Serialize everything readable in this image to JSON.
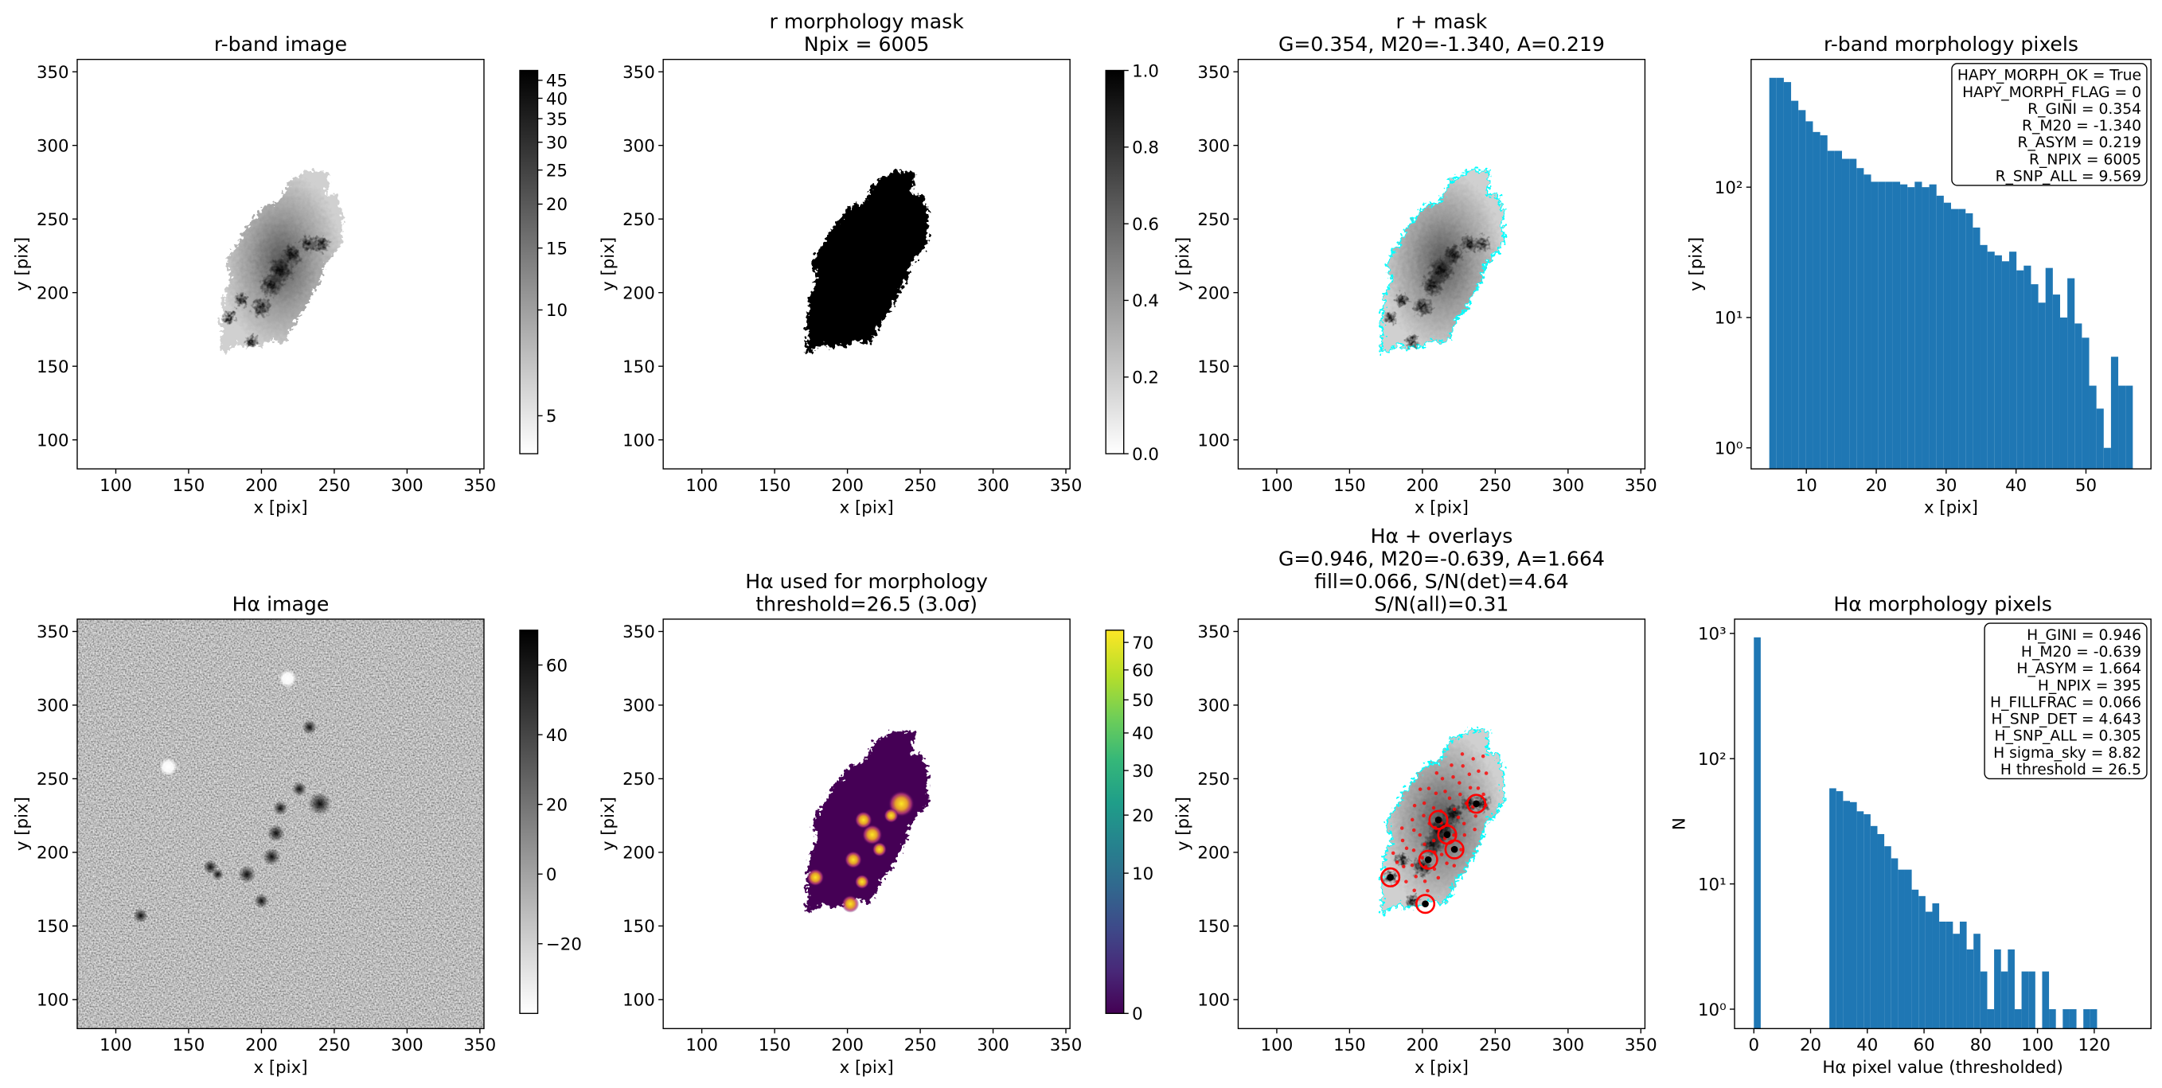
{
  "chart_data": [
    {
      "type": "image",
      "title": [
        "r-band image"
      ],
      "xlabel": "x [pix]",
      "ylabel": "y [pix]",
      "xlim": [
        73.5,
        352.8
      ],
      "ylim": [
        80.3,
        358.4
      ],
      "xticks": [
        100,
        150,
        200,
        250,
        300,
        350
      ],
      "yticks": [
        100,
        150,
        200,
        250,
        300,
        350
      ],
      "cmap": "gray_r",
      "cscale": "log",
      "clim": [
        3.9,
        48
      ],
      "cticks": [
        5,
        10,
        15,
        20,
        25,
        30,
        35,
        40,
        45
      ]
    },
    {
      "type": "image",
      "title": [
        "r morphology mask",
        "Npix = 6005"
      ],
      "xlabel": "x [pix]",
      "ylabel": "y [pix]",
      "xlim": [
        73.5,
        352.8
      ],
      "ylim": [
        80.3,
        358.4
      ],
      "xticks": [
        100,
        150,
        200,
        250,
        300,
        350
      ],
      "yticks": [
        100,
        150,
        200,
        250,
        300,
        350
      ],
      "cmap": "gray_r",
      "cscale": "linear",
      "clim": [
        0,
        1
      ],
      "cticks": [
        {
          "value": 0,
          "label": "0.0"
        },
        0.2,
        0.4,
        0.6,
        0.8,
        {
          "value": 1,
          "label": "1.0"
        }
      ]
    },
    {
      "type": "image",
      "title": [
        "r + mask",
        "G=0.354, M20=-1.340, A=0.219"
      ],
      "xlabel": "x [pix]",
      "ylabel": "y [pix]",
      "xlim": [
        73.5,
        352.8
      ],
      "ylim": [
        80.3,
        358.4
      ],
      "xticks": [
        100,
        150,
        200,
        250,
        300,
        350
      ],
      "yticks": [
        100,
        150,
        200,
        250,
        300,
        350
      ],
      "contour_color": "#00ffff"
    },
    {
      "type": "histogram",
      "title": [
        "r-band morphology pixels"
      ],
      "xlabel": "x [pix]",
      "ylabel": "y [pix]",
      "color": "#1f77b4",
      "bins": [
        4.7,
        5.74,
        6.78,
        7.82,
        8.86,
        9.9,
        10.94,
        11.98,
        13.02,
        14.06,
        15.1,
        16.14,
        17.18,
        18.22,
        19.26,
        20.3,
        21.34,
        22.38,
        23.42,
        24.46,
        25.5,
        26.54,
        27.58,
        28.62,
        29.66,
        30.7,
        31.74,
        32.78,
        33.82,
        34.86,
        35.9,
        36.94,
        37.98,
        39.02,
        40.06,
        41.1,
        42.14,
        43.18,
        44.22,
        45.26,
        46.3,
        47.34,
        48.38,
        49.42,
        50.46,
        51.5,
        52.54,
        53.58,
        54.62,
        55.66,
        56.7
      ],
      "counts": [
        690,
        690,
        640,
        460,
        390,
        320,
        265,
        250,
        190,
        190,
        165,
        165,
        140,
        125,
        110,
        110,
        110,
        110,
        105,
        100,
        110,
        100,
        105,
        86,
        76,
        68,
        68,
        63,
        49,
        36,
        32,
        30,
        27,
        32,
        23,
        25,
        18,
        13,
        24,
        15,
        10,
        20,
        9,
        7,
        3,
        2,
        1,
        5,
        3,
        3
      ],
      "xlim": [
        2.1,
        59.3
      ],
      "xticks": [
        10,
        20,
        30,
        40,
        50
      ],
      "yscale": "log",
      "ylim": [
        0.69,
        955
      ],
      "yticks": [
        {
          "value": 1,
          "label": "10⁰"
        },
        {
          "value": 10,
          "label": "10¹"
        },
        {
          "value": 100,
          "label": "10²"
        }
      ],
      "annotation": [
        "HAPY_MORPH_OK = True",
        "HAPY_MORPH_FLAG = 0",
        "R_GINI = 0.354",
        "R_M20 = -1.340",
        "R_ASYM = 0.219",
        "R_NPIX = 6005",
        "R_SNP_ALL = 9.569"
      ]
    },
    {
      "type": "image",
      "title": [
        "Hα image"
      ],
      "xlabel": "x [pix]",
      "ylabel": "y [pix]",
      "xlim": [
        73.5,
        352.8
      ],
      "ylim": [
        80.3,
        358.4
      ],
      "xticks": [
        100,
        150,
        200,
        250,
        300,
        350
      ],
      "yticks": [
        100,
        150,
        200,
        250,
        300,
        350
      ],
      "cmap": "gray_r",
      "cscale": "linear",
      "clim": [
        -40,
        70
      ],
      "cticks": [
        {
          "value": -20,
          "label": "−20"
        },
        0,
        20,
        40,
        60
      ]
    },
    {
      "type": "image",
      "title": [
        "Hα used for morphology",
        "threshold=26.5 (3.0σ)"
      ],
      "xlabel": "x [pix]",
      "ylabel": "y [pix]",
      "xlim": [
        73.5,
        352.8
      ],
      "ylim": [
        80.3,
        358.4
      ],
      "xticks": [
        100,
        150,
        200,
        250,
        300,
        350
      ],
      "yticks": [
        100,
        150,
        200,
        250,
        300,
        350
      ],
      "cmap": "viridis",
      "cscale": "sqrt",
      "clim": [
        0,
        74.7
      ],
      "cticks": [
        0,
        10,
        20,
        30,
        40,
        50,
        60,
        70
      ]
    },
    {
      "type": "image",
      "title": [
        "Hα + overlays",
        "G=0.946, M20=-0.639, A=1.664",
        "fill=0.066, S/N(det)=4.64",
        "S/N(all)=0.31"
      ],
      "xlabel": "x [pix]",
      "ylabel": "y [pix]",
      "xlim": [
        73.5,
        352.8
      ],
      "ylim": [
        80.3,
        358.4
      ],
      "xticks": [
        100,
        150,
        200,
        250,
        300,
        350
      ],
      "yticks": [
        100,
        150,
        200,
        250,
        300,
        350
      ],
      "contour_color": "#00ffff",
      "marker_color": "#ff0000"
    },
    {
      "type": "histogram",
      "title": [
        "Hα morphology pixels"
      ],
      "xlabel": "Hα pixel value (thresholded)",
      "ylabel": "N",
      "color": "#1f77b4",
      "bins": [
        0,
        2.42,
        4.84,
        7.26,
        9.68,
        12.1,
        14.52,
        16.94,
        19.36,
        21.78,
        24.2,
        26.62,
        29.04,
        31.46,
        33.88,
        36.3,
        38.72,
        41.14,
        43.56,
        45.98,
        48.4,
        50.82,
        53.24,
        55.66,
        58.08,
        60.5,
        62.92,
        65.34,
        67.76,
        70.18,
        72.6,
        75.02,
        77.44,
        79.86,
        82.28,
        84.7,
        87.12,
        89.54,
        91.96,
        94.38,
        96.8,
        99.22,
        101.64,
        104.06,
        106.48,
        108.9,
        111.32,
        113.74,
        116.16,
        118.58,
        121
      ],
      "counts": [
        930,
        0,
        0,
        0,
        0,
        0,
        0,
        0,
        0,
        0,
        0,
        58,
        55,
        46,
        45,
        38,
        36,
        29,
        25,
        20,
        16,
        13,
        13,
        9,
        8,
        6,
        7,
        5,
        5,
        4,
        5,
        3,
        4,
        2,
        1,
        3,
        2,
        3,
        1,
        2,
        2,
        0,
        2,
        1,
        0,
        1,
        1,
        0,
        1,
        1
      ],
      "xlim": [
        -6.8,
        140
      ],
      "xticks": [
        0,
        20,
        40,
        60,
        80,
        100,
        120
      ],
      "yscale": "log",
      "ylim": [
        0.7,
        1300
      ],
      "yticks": [
        {
          "value": 1,
          "label": "10⁰"
        },
        {
          "value": 10,
          "label": "10¹"
        },
        {
          "value": 100,
          "label": "10²"
        },
        {
          "value": 1000,
          "label": "10³"
        }
      ],
      "annotation": [
        "H_GINI = 0.946",
        "H_M20 = -0.639",
        "H_ASYM = 1.664",
        "H_NPIX = 395",
        "H_FILLFRAC = 0.066",
        "H_SNP_DET = 4.643",
        "H_SNP_ALL = 0.305",
        "H sigma_sky = 8.82",
        "H threshold = 26.5"
      ]
    }
  ]
}
